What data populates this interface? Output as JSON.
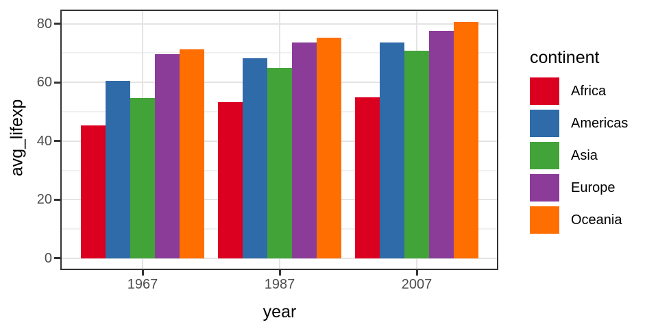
{
  "chart_data": {
    "type": "bar",
    "bar_grouping": "dodge",
    "title": "",
    "xlabel": "year",
    "ylabel": "avg_lifexp",
    "categories": [
      "1967",
      "1987",
      "2007"
    ],
    "series": [
      {
        "name": "Africa",
        "color": "#DB0020",
        "values": [
          45.3,
          53.3,
          54.8
        ]
      },
      {
        "name": "Americas",
        "color": "#2F6BA9",
        "values": [
          60.4,
          68.1,
          73.6
        ]
      },
      {
        "name": "Asia",
        "color": "#42A338",
        "values": [
          54.7,
          64.9,
          70.7
        ]
      },
      {
        "name": "Europe",
        "color": "#8B3C98",
        "values": [
          69.7,
          73.7,
          77.6
        ]
      },
      {
        "name": "Oceania",
        "color": "#FF6E01",
        "values": [
          71.2,
          75.3,
          80.7
        ]
      }
    ],
    "y_axis": {
      "ticks": [
        0,
        20,
        40,
        60,
        80
      ],
      "minor_ticks": [
        10,
        30,
        50,
        70
      ],
      "range": [
        -4.0,
        84.8
      ]
    },
    "x_axis": {
      "ticks": [
        "1967",
        "1987",
        "2007"
      ]
    },
    "grid": true,
    "legend": {
      "title": "continent",
      "position": "right"
    }
  },
  "style": {
    "axis_text_color": "#4D4D4D",
    "axis_title_color": "#000000",
    "grid_major_color": "#E4E4E4",
    "grid_minor_color": "#F0F0F0",
    "panel_border_color": "#333333",
    "background": "#FFFFFF"
  }
}
